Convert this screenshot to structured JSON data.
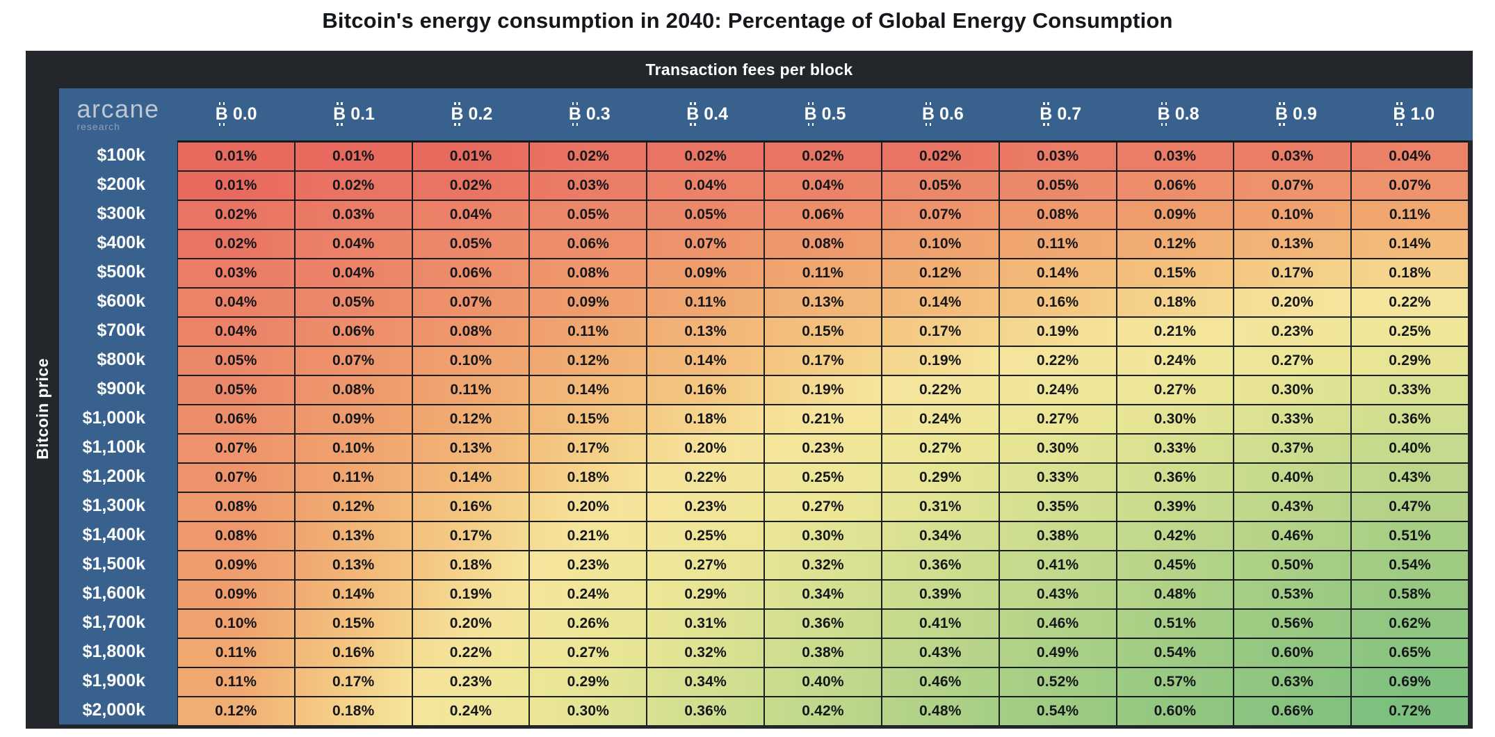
{
  "title": "Bitcoin's energy consumption in 2040: Percentage of Global Energy Consumption",
  "table": {
    "top_header": "Transaction fees per block",
    "left_header": "Bitcoin price",
    "logo_primary": "arcane",
    "logo_secondary": "research",
    "currency_symbol": "bitcoin-sign"
  },
  "chart_data": {
    "type": "heatmap",
    "title": "Bitcoin's energy consumption in 2040: Percentage of Global Energy Consumption",
    "xlabel": "Transaction fees per block",
    "ylabel": "Bitcoin price",
    "x_labels": [
      "₿ 0.0",
      "₿ 0.1",
      "₿ 0.2",
      "₿ 0.3",
      "₿ 0.4",
      "₿ 0.5",
      "₿ 0.6",
      "₿ 0.7",
      "₿ 0.8",
      "₿ 0.9",
      "₿ 1.0"
    ],
    "columns": [
      "0.0",
      "0.1",
      "0.2",
      "0.3",
      "0.4",
      "0.5",
      "0.6",
      "0.7",
      "0.8",
      "0.9",
      "1.0"
    ],
    "rows": [
      "$100k",
      "$200k",
      "$300k",
      "$400k",
      "$500k",
      "$600k",
      "$700k",
      "$800k",
      "$900k",
      "$1,000k",
      "$1,100k",
      "$1,200k",
      "$1,300k",
      "$1,400k",
      "$1,500k",
      "$1,600k",
      "$1,700k",
      "$1,800k",
      "$1,900k",
      "$2,000k"
    ],
    "value_suffix": "%",
    "values": [
      [
        0.01,
        0.01,
        0.01,
        0.02,
        0.02,
        0.02,
        0.02,
        0.03,
        0.03,
        0.03,
        0.04
      ],
      [
        0.01,
        0.02,
        0.02,
        0.03,
        0.04,
        0.04,
        0.05,
        0.05,
        0.06,
        0.07,
        0.07
      ],
      [
        0.02,
        0.03,
        0.04,
        0.05,
        0.05,
        0.06,
        0.07,
        0.08,
        0.09,
        0.1,
        0.11
      ],
      [
        0.02,
        0.04,
        0.05,
        0.06,
        0.07,
        0.08,
        0.1,
        0.11,
        0.12,
        0.13,
        0.14
      ],
      [
        0.03,
        0.04,
        0.06,
        0.08,
        0.09,
        0.11,
        0.12,
        0.14,
        0.15,
        0.17,
        0.18
      ],
      [
        0.04,
        0.05,
        0.07,
        0.09,
        0.11,
        0.13,
        0.14,
        0.16,
        0.18,
        0.2,
        0.22
      ],
      [
        0.04,
        0.06,
        0.08,
        0.11,
        0.13,
        0.15,
        0.17,
        0.19,
        0.21,
        0.23,
        0.25
      ],
      [
        0.05,
        0.07,
        0.1,
        0.12,
        0.14,
        0.17,
        0.19,
        0.22,
        0.24,
        0.27,
        0.29
      ],
      [
        0.05,
        0.08,
        0.11,
        0.14,
        0.16,
        0.19,
        0.22,
        0.24,
        0.27,
        0.3,
        0.33
      ],
      [
        0.06,
        0.09,
        0.12,
        0.15,
        0.18,
        0.21,
        0.24,
        0.27,
        0.3,
        0.33,
        0.36
      ],
      [
        0.07,
        0.1,
        0.13,
        0.17,
        0.2,
        0.23,
        0.27,
        0.3,
        0.33,
        0.37,
        0.4
      ],
      [
        0.07,
        0.11,
        0.14,
        0.18,
        0.22,
        0.25,
        0.29,
        0.33,
        0.36,
        0.4,
        0.43
      ],
      [
        0.08,
        0.12,
        0.16,
        0.2,
        0.23,
        0.27,
        0.31,
        0.35,
        0.39,
        0.43,
        0.47
      ],
      [
        0.08,
        0.13,
        0.17,
        0.21,
        0.25,
        0.3,
        0.34,
        0.38,
        0.42,
        0.46,
        0.51
      ],
      [
        0.09,
        0.13,
        0.18,
        0.23,
        0.27,
        0.32,
        0.36,
        0.41,
        0.45,
        0.5,
        0.54
      ],
      [
        0.09,
        0.14,
        0.19,
        0.24,
        0.29,
        0.34,
        0.39,
        0.43,
        0.48,
        0.53,
        0.58
      ],
      [
        0.1,
        0.15,
        0.2,
        0.26,
        0.31,
        0.36,
        0.41,
        0.46,
        0.51,
        0.56,
        0.62
      ],
      [
        0.11,
        0.16,
        0.22,
        0.27,
        0.32,
        0.38,
        0.43,
        0.49,
        0.54,
        0.6,
        0.65
      ],
      [
        0.11,
        0.17,
        0.23,
        0.29,
        0.34,
        0.4,
        0.46,
        0.52,
        0.57,
        0.63,
        0.69
      ],
      [
        0.12,
        0.18,
        0.24,
        0.3,
        0.36,
        0.42,
        0.48,
        0.54,
        0.6,
        0.66,
        0.72
      ]
    ],
    "value_range": [
      0.01,
      0.72
    ],
    "colors": {
      "low": "#e86a5f",
      "mid": "#f6e59c",
      "high": "#7cbf7e",
      "header_blue": "#38618d",
      "frame_dark": "#23262b"
    },
    "legend": "none",
    "grid": "on"
  }
}
